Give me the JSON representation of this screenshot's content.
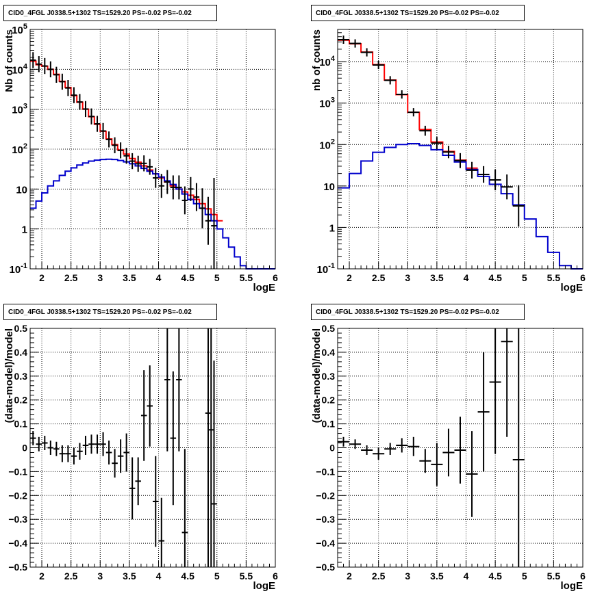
{
  "chart_data": [
    {
      "type": "line",
      "title": "CID0_4FGL J0338.5+1302 TS=1529.20 PS=-0.02 PS=-0.02",
      "xlabel": "logE",
      "ylabel": "Nb of counts",
      "xlim": [
        1.8,
        6.0
      ],
      "ylim": [
        0.1,
        100000
      ],
      "log_y": true,
      "grid": true,
      "xticks": [
        "2",
        "2.5",
        "3",
        "3.5",
        "4",
        "4.5",
        "5",
        "5.5",
        "6"
      ],
      "yticks": [
        "10^-1",
        "1",
        "10",
        "10^2",
        "10^3",
        "10^4",
        "10^5"
      ],
      "bin_edges": [
        1.8,
        1.9,
        2.0,
        2.1,
        2.2,
        2.3,
        2.4,
        2.5,
        2.6,
        2.7,
        2.8,
        2.9,
        3.0,
        3.1,
        3.2,
        3.3,
        3.4,
        3.5,
        3.6,
        3.7,
        3.8,
        3.9,
        4.0,
        4.1,
        4.2,
        4.3,
        4.4,
        4.5,
        4.6,
        4.7,
        4.8,
        4.9,
        5.0,
        5.1,
        5.2,
        5.3,
        5.4,
        5.5,
        5.6,
        5.7,
        5.8,
        5.9,
        6.0
      ],
      "series": [
        {
          "color": "#ff0000",
          "values": [
            16000,
            13000,
            12000,
            10000,
            7500,
            5000,
            3500,
            2200,
            1500,
            1000,
            650,
            420,
            280,
            180,
            130,
            95,
            75,
            58,
            47,
            38,
            30,
            24,
            19,
            15,
            12,
            10,
            8.5,
            7,
            5.5,
            4.3,
            3.2,
            2.3,
            1.6,
            null,
            null,
            null,
            null,
            null,
            null,
            null,
            null,
            null
          ]
        },
        {
          "color": "#0000cc",
          "values": [
            3.3,
            5,
            8,
            12,
            16,
            22,
            28,
            34,
            40,
            45,
            50,
            53,
            55,
            56,
            55,
            52,
            48,
            43,
            38,
            33,
            28,
            24,
            20,
            16,
            13,
            10,
            7.5,
            5.5,
            4.3,
            3.3,
            2.3,
            1.6,
            1.0,
            0.6,
            0.35,
            0.2,
            0.12,
            0.1,
            0.1,
            0.1,
            0.1,
            0.1
          ]
        }
      ],
      "points": [
        {
          "x": 1.85,
          "y": 17000,
          "yerr": 0.2
        },
        {
          "x": 1.95,
          "y": 13500,
          "yerr": 0.2
        },
        {
          "x": 2.05,
          "y": 12100,
          "yerr": 0.2
        },
        {
          "x": 2.15,
          "y": 10000,
          "yerr": 0.2
        },
        {
          "x": 2.25,
          "y": 7300,
          "yerr": 0.2
        },
        {
          "x": 2.35,
          "y": 4900,
          "yerr": 0.2
        },
        {
          "x": 2.45,
          "y": 3400,
          "yerr": 0.2
        },
        {
          "x": 2.55,
          "y": 2250,
          "yerr": 0.2
        },
        {
          "x": 2.65,
          "y": 1520,
          "yerr": 0.2
        },
        {
          "x": 2.75,
          "y": 1010,
          "yerr": 0.2
        },
        {
          "x": 2.85,
          "y": 660,
          "yerr": 0.2
        },
        {
          "x": 2.95,
          "y": 430,
          "yerr": 0.2
        },
        {
          "x": 3.05,
          "y": 285,
          "yerr": 0.2
        },
        {
          "x": 3.15,
          "y": 175,
          "yerr": 0.2
        },
        {
          "x": 3.25,
          "y": 125,
          "yerr": 0.2
        },
        {
          "x": 3.35,
          "y": 93,
          "yerr": 0.2
        },
        {
          "x": 3.45,
          "y": 68,
          "yerr": 0.2
        },
        {
          "x": 3.55,
          "y": 50,
          "yerr": 0.2
        },
        {
          "x": 3.65,
          "y": 43,
          "yerr": 0.2
        },
        {
          "x": 3.75,
          "y": 44,
          "yerr": 0.2
        },
        {
          "x": 3.85,
          "y": 36,
          "yerr": 0.2
        },
        {
          "x": 3.95,
          "y": 19,
          "yerr": 0.25
        },
        {
          "x": 4.05,
          "y": 12,
          "yerr": 0.3
        },
        {
          "x": 4.15,
          "y": 15,
          "yerr": 0.3
        },
        {
          "x": 4.25,
          "y": 11,
          "yerr": 0.3
        },
        {
          "x": 4.35,
          "y": 11,
          "yerr": 0.3
        },
        {
          "x": 4.45,
          "y": 5.2,
          "yerr": 0.35
        },
        {
          "x": 4.55,
          "y": 10,
          "yerr": 0.3
        },
        {
          "x": 4.65,
          "y": 6.3,
          "yerr": 0.35
        },
        {
          "x": 4.75,
          "y": 3.3,
          "yerr": 0.5
        },
        {
          "x": 4.85,
          "y": 1.6,
          "yerr": 0.6
        },
        {
          "x": 4.95,
          "y": 1.2,
          "yerr": 1.2
        }
      ]
    },
    {
      "type": "line",
      "title": "CID0_4FGL J0338.5+1302 TS=1529.20 PS=-0.02 PS=-0.02",
      "xlabel": "logE",
      "ylabel": "nb of counts",
      "xlim": [
        1.8,
        6.0
      ],
      "ylim": [
        0.1,
        60000
      ],
      "log_y": true,
      "grid": true,
      "xticks": [
        "2",
        "2.5",
        "3",
        "3.5",
        "4",
        "4.5",
        "5",
        "5.5",
        "6"
      ],
      "yticks": [
        "10^-1",
        "1",
        "10",
        "10^2",
        "10^3",
        "10^4"
      ],
      "bin_edges": [
        1.8,
        2.0,
        2.2,
        2.4,
        2.6,
        2.8,
        3.0,
        3.2,
        3.4,
        3.6,
        3.8,
        4.0,
        4.2,
        4.4,
        4.6,
        4.8,
        5.0,
        5.2,
        5.4,
        5.6,
        5.8,
        6.0
      ],
      "series": [
        {
          "color": "#ff0000",
          "values": [
            33000,
            27000,
            17000,
            8500,
            3600,
            1600,
            600,
            230,
            115,
            68,
            42,
            27,
            null,
            null,
            null,
            null,
            null,
            null,
            null,
            null,
            null
          ]
        },
        {
          "color": "#0000cc",
          "values": [
            9,
            20,
            40,
            65,
            85,
            100,
            105,
            95,
            75,
            55,
            38,
            25,
            17,
            11,
            6.5,
            3.5,
            1.6,
            0.6,
            0.25,
            0.12,
            0.1
          ]
        }
      ],
      "points": [
        {
          "x": 1.9,
          "y": 34000,
          "yerr": 0.1
        },
        {
          "x": 2.1,
          "y": 27500,
          "yerr": 0.1
        },
        {
          "x": 2.3,
          "y": 16800,
          "yerr": 0.1
        },
        {
          "x": 2.5,
          "y": 8300,
          "yerr": 0.1
        },
        {
          "x": 2.7,
          "y": 3550,
          "yerr": 0.1
        },
        {
          "x": 2.9,
          "y": 1620,
          "yerr": 0.1
        },
        {
          "x": 3.1,
          "y": 600,
          "yerr": 0.1
        },
        {
          "x": 3.3,
          "y": 215,
          "yerr": 0.12
        },
        {
          "x": 3.5,
          "y": 108,
          "yerr": 0.15
        },
        {
          "x": 3.7,
          "y": 66,
          "yerr": 0.15
        },
        {
          "x": 3.9,
          "y": 41,
          "yerr": 0.18
        },
        {
          "x": 4.1,
          "y": 24,
          "yerr": 0.2
        },
        {
          "x": 4.3,
          "y": 19,
          "yerr": 0.2
        },
        {
          "x": 4.5,
          "y": 14,
          "yerr": 0.25
        },
        {
          "x": 4.7,
          "y": 9.5,
          "yerr": 0.3
        },
        {
          "x": 4.9,
          "y": 3.3,
          "yerr": 0.5
        }
      ]
    },
    {
      "type": "scatter",
      "title": "CID0_4FGL J0338.5+1302 TS=1529.20 PS=-0.02 PS=-0.02",
      "xlabel": "logE",
      "ylabel": "(data-model)/model",
      "xlim": [
        1.8,
        6.0
      ],
      "ylim": [
        -0.5,
        0.5
      ],
      "grid": true,
      "xticks": [
        "2",
        "2.5",
        "3",
        "3.5",
        "4",
        "4.5",
        "5",
        "5.5",
        "6"
      ],
      "yticks": [
        "-0.5",
        "-0.4",
        "-0.3",
        "-0.2",
        "-0.1",
        "0",
        "0.1",
        "0.2",
        "0.3",
        "0.4",
        "0.5"
      ],
      "xerr": 0.05,
      "points": [
        {
          "x": 1.85,
          "y": 0.04,
          "yerr": 0.03
        },
        {
          "x": 1.95,
          "y": 0.015,
          "yerr": 0.03
        },
        {
          "x": 2.05,
          "y": 0.02,
          "yerr": 0.03
        },
        {
          "x": 2.15,
          "y": 0.0,
          "yerr": 0.03
        },
        {
          "x": 2.25,
          "y": -0.005,
          "yerr": 0.03
        },
        {
          "x": 2.35,
          "y": -0.025,
          "yerr": 0.035
        },
        {
          "x": 2.45,
          "y": -0.025,
          "yerr": 0.035
        },
        {
          "x": 2.55,
          "y": -0.035,
          "yerr": 0.035
        },
        {
          "x": 2.65,
          "y": -0.015,
          "yerr": 0.035
        },
        {
          "x": 2.75,
          "y": 0.01,
          "yerr": 0.04
        },
        {
          "x": 2.85,
          "y": 0.015,
          "yerr": 0.04
        },
        {
          "x": 2.95,
          "y": 0.015,
          "yerr": 0.04
        },
        {
          "x": 3.05,
          "y": 0.015,
          "yerr": 0.05
        },
        {
          "x": 3.15,
          "y": -0.02,
          "yerr": 0.05
        },
        {
          "x": 3.25,
          "y": -0.065,
          "yerr": 0.06
        },
        {
          "x": 3.35,
          "y": -0.035,
          "yerr": 0.07
        },
        {
          "x": 3.45,
          "y": -0.02,
          "yerr": 0.08
        },
        {
          "x": 3.55,
          "y": -0.17,
          "yerr": 0.13
        },
        {
          "x": 3.65,
          "y": -0.14,
          "yerr": 0.1
        },
        {
          "x": 3.75,
          "y": 0.135,
          "yerr": 0.19
        },
        {
          "x": 3.85,
          "y": 0.175,
          "yerr": 0.17
        },
        {
          "x": 3.95,
          "y": -0.225,
          "yerr": 0.19
        },
        {
          "x": 4.05,
          "y": -0.39,
          "yerr": 0.18
        },
        {
          "x": 4.15,
          "y": 0.285,
          "yerr": 0.3
        },
        {
          "x": 4.25,
          "y": 0.04,
          "yerr": 0.28
        },
        {
          "x": 4.35,
          "y": 0.285,
          "yerr": 0.3
        },
        {
          "x": 4.45,
          "y": -0.355,
          "yerr": 0.35
        },
        {
          "x": 4.85,
          "y": 0.145,
          "yerr": 1.0
        },
        {
          "x": 4.9,
          "y": 0.075,
          "yerr": 0.7
        },
        {
          "x": 4.95,
          "y": -0.235,
          "yerr": 0.6
        }
      ]
    },
    {
      "type": "scatter",
      "title": "CID0_4FGL J0338.5+1302 TS=1529.20 PS=-0.02 PS=-0.02",
      "xlabel": "logE",
      "ylabel": "(data-model)/model",
      "xlim": [
        1.8,
        6.0
      ],
      "ylim": [
        -0.5,
        0.5
      ],
      "grid": true,
      "xticks": [
        "2",
        "2.5",
        "3",
        "3.5",
        "4",
        "4.5",
        "5",
        "5.5",
        "6"
      ],
      "yticks": [
        "-0.5",
        "-0.4",
        "-0.3",
        "-0.2",
        "-0.1",
        "0",
        "0.1",
        "0.2",
        "0.3",
        "0.4",
        "0.5"
      ],
      "xerr": 0.1,
      "points": [
        {
          "x": 1.9,
          "y": 0.025,
          "yerr": 0.02
        },
        {
          "x": 2.1,
          "y": 0.015,
          "yerr": 0.02
        },
        {
          "x": 2.3,
          "y": -0.01,
          "yerr": 0.02
        },
        {
          "x": 2.5,
          "y": -0.025,
          "yerr": 0.025
        },
        {
          "x": 2.7,
          "y": -0.005,
          "yerr": 0.025
        },
        {
          "x": 2.9,
          "y": 0.01,
          "yerr": 0.03
        },
        {
          "x": 3.1,
          "y": 0.005,
          "yerr": 0.04
        },
        {
          "x": 3.3,
          "y": -0.055,
          "yerr": 0.05
        },
        {
          "x": 3.5,
          "y": -0.07,
          "yerr": 0.09
        },
        {
          "x": 3.7,
          "y": -0.02,
          "yerr": 0.1
        },
        {
          "x": 3.9,
          "y": -0.01,
          "yerr": 0.14
        },
        {
          "x": 4.1,
          "y": -0.11,
          "yerr": 0.18
        },
        {
          "x": 4.3,
          "y": 0.15,
          "yerr": 0.25
        },
        {
          "x": 4.5,
          "y": 0.275,
          "yerr": 0.3
        },
        {
          "x": 4.7,
          "y": 0.445,
          "yerr": 0.4
        },
        {
          "x": 4.9,
          "y": -0.05,
          "yerr": 0.55
        }
      ]
    }
  ]
}
